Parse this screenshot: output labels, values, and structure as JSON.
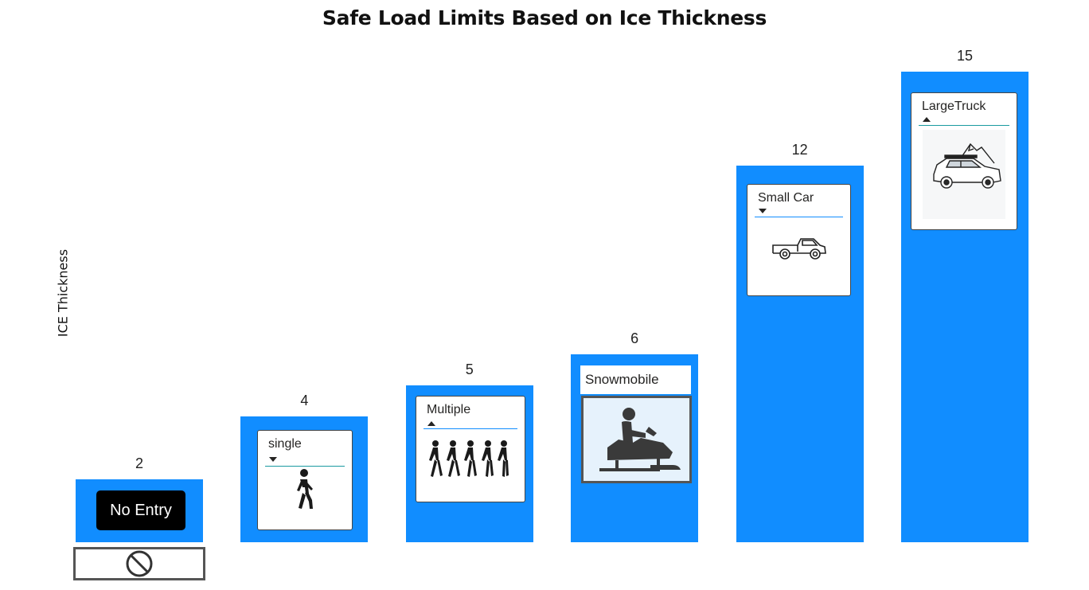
{
  "chart_data": {
    "type": "bar",
    "title": "Safe Load Limits Based on Ice Thickness",
    "xlabel": "",
    "ylabel": "ICE Thickness",
    "ylim": [
      0,
      15.8
    ],
    "grid": false,
    "bar_color": "#118dff",
    "categories": [
      "No Entry",
      "single",
      "Multiple",
      "Snowmobile",
      "Small Car",
      "LargeTruck"
    ],
    "values": [
      2,
      4,
      5,
      6,
      12,
      15
    ],
    "data_labels": [
      "2",
      "4",
      "5",
      "6",
      "12",
      "15"
    ]
  },
  "cards": {
    "no_entry": {
      "label": "No Entry",
      "icon": "no-entry-icon"
    },
    "single": {
      "label": "single",
      "icon": "walking-person-icon"
    },
    "multiple": {
      "label": "Multiple",
      "icon": "group-walking-icon"
    },
    "snowmobile": {
      "label": "Snowmobile",
      "icon": "snowmobile-icon"
    },
    "small_car": {
      "label": "Small Car",
      "icon": "pickup-truck-icon"
    },
    "large_truck": {
      "label": "LargeTruck",
      "icon": "suv-icon"
    }
  }
}
